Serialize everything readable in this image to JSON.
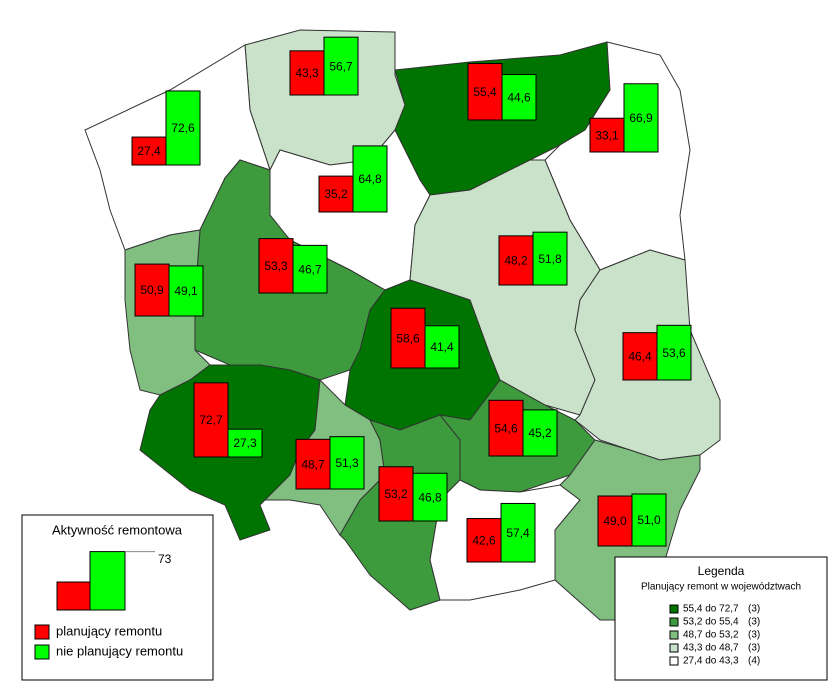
{
  "activity_legend": {
    "title": "Aktywność remontowa",
    "scale_max": 73,
    "series": [
      {
        "name": "planujący remontu",
        "color": "#ff0000"
      },
      {
        "name": "nie planujący remontu",
        "color": "#00ff00"
      }
    ]
  },
  "class_legend": {
    "title": "Legenda",
    "subtitle": "Planujący remont w województwach",
    "classes": [
      {
        "label": "55,4 do 72,7",
        "count": "(3)",
        "color": "#007400"
      },
      {
        "label": "53,2 do 55,4",
        "count": "(3)",
        "color": "#3d9a3d"
      },
      {
        "label": "48,7 do 53,2",
        "count": "(3)",
        "color": "#80bf80"
      },
      {
        "label": "43,3 do 48,7",
        "count": "(3)",
        "color": "#c9e2c9"
      },
      {
        "label": "27,4 do 43,3",
        "count": "(4)",
        "color": "#ffffff"
      }
    ]
  },
  "regions": [
    {
      "values": [
        43.3,
        56.7
      ],
      "value_labels": [
        "43,3",
        "56,7"
      ]
    },
    {
      "values": [
        27.4,
        72.6
      ],
      "value_labels": [
        "27,4",
        "72,6"
      ]
    },
    {
      "values": [
        55.4,
        44.6
      ],
      "value_labels": [
        "55,4",
        "44,6"
      ]
    },
    {
      "values": [
        33.1,
        66.9
      ],
      "value_labels": [
        "33,1",
        "66,9"
      ]
    },
    {
      "values": [
        35.2,
        64.8
      ],
      "value_labels": [
        "35,2",
        "64,8"
      ]
    },
    {
      "values": [
        53.3,
        46.7
      ],
      "value_labels": [
        "53,3",
        "46,7"
      ]
    },
    {
      "values": [
        48.2,
        51.8
      ],
      "value_labels": [
        "48,2",
        "51,8"
      ]
    },
    {
      "values": [
        50.9,
        49.1
      ],
      "value_labels": [
        "50,9",
        "49,1"
      ]
    },
    {
      "values": [
        58.6,
        41.4
      ],
      "value_labels": [
        "58,6",
        "41,4"
      ]
    },
    {
      "values": [
        46.4,
        53.6
      ],
      "value_labels": [
        "46,4",
        "53,6"
      ]
    },
    {
      "values": [
        72.7,
        27.3
      ],
      "value_labels": [
        "72,7",
        "27,3"
      ]
    },
    {
      "values": [
        48.7,
        51.3
      ],
      "value_labels": [
        "48,7",
        "51,3"
      ]
    },
    {
      "values": [
        54.6,
        45.2
      ],
      "value_labels": [
        "54,6",
        "45,2"
      ]
    },
    {
      "values": [
        53.2,
        46.8
      ],
      "value_labels": [
        "53,2",
        "46,8"
      ]
    },
    {
      "values": [
        42.6,
        57.4
      ],
      "value_labels": [
        "42,6",
        "57,4"
      ]
    },
    {
      "values": [
        49.0,
        51.0
      ],
      "value_labels": [
        "49,0",
        "51,0"
      ]
    }
  ]
}
